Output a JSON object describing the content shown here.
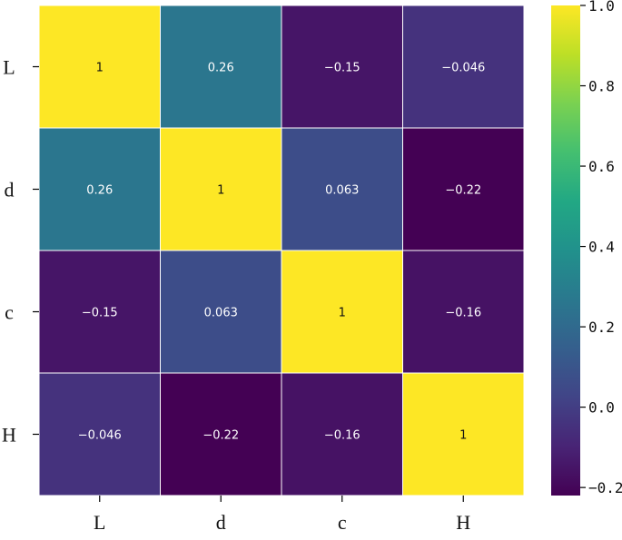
{
  "chart_data": {
    "type": "heatmap",
    "title": "",
    "xlabel": "",
    "ylabel": "",
    "x_categories": [
      "L",
      "d",
      "c",
      "H"
    ],
    "y_categories": [
      "L",
      "d",
      "c",
      "H"
    ],
    "values": [
      [
        1,
        0.26,
        -0.15,
        -0.046
      ],
      [
        0.26,
        1,
        0.063,
        -0.22
      ],
      [
        -0.15,
        0.063,
        1,
        -0.16
      ],
      [
        -0.046,
        -0.22,
        -0.16,
        1
      ]
    ],
    "annotations": [
      [
        "1",
        "0.26",
        "−0.15",
        "−0.046"
      ],
      [
        "0.26",
        "1",
        "0.063",
        "−0.22"
      ],
      [
        "−0.15",
        "0.063",
        "1",
        "−0.16"
      ],
      [
        "−0.046",
        "−0.22",
        "−0.16",
        "1"
      ]
    ],
    "colormap": "viridis",
    "vmin": -0.22,
    "vmax": 1.0,
    "colorbar": {
      "ticks": [
        1.0,
        0.8,
        0.6,
        0.4,
        0.2,
        0.0,
        -0.2
      ],
      "tick_labels": [
        "1.0",
        "0.8",
        "0.6",
        "0.4",
        "0.2",
        "0.0",
        "−0.2"
      ]
    },
    "cell_borders": true
  },
  "colors": {
    "cell_border": "#ffffff",
    "text_dark": "#111111",
    "text_light": "#ffffff"
  }
}
